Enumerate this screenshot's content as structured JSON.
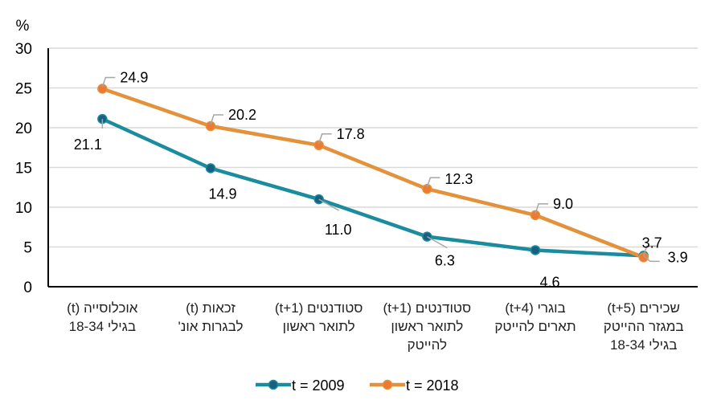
{
  "chart_data": {
    "type": "line",
    "title": "",
    "ylabel": "%",
    "xlabel": "",
    "ylim": [
      0,
      30
    ],
    "yticks": [
      0,
      5,
      10,
      15,
      20,
      25,
      30
    ],
    "grid": true,
    "legend_position": "bottom",
    "categories": [
      [
        "אוכלוסייה (t)",
        "בגילי 18-34"
      ],
      [
        "זכאות (t)",
        "לבגרות אונ'"
      ],
      [
        "סטודנטים (t+1)",
        "לתואר ראשון"
      ],
      [
        "סטודנטים (t+1)",
        "לתואר ראשון",
        "להייטק"
      ],
      [
        "בוגרי (t+4)",
        "תארים להייטק"
      ],
      [
        "שכירים (t+5)",
        "במגזר ההייטק",
        "בגילי 18-34"
      ]
    ],
    "series": [
      {
        "name": "t = 2009",
        "color": "#1a8c9e",
        "marker_color": "#1b5f80",
        "values": [
          21.1,
          14.9,
          11.0,
          6.3,
          4.6,
          3.9
        ],
        "labels": [
          "21.1",
          "14.9",
          "11.0",
          "6.3",
          "4.6",
          "3.9"
        ]
      },
      {
        "name": "t = 2018",
        "color": "#e3913a",
        "marker_color": "#ec7a35",
        "values": [
          24.9,
          20.2,
          17.8,
          12.3,
          9.0,
          3.7
        ],
        "labels": [
          "24.9",
          "20.2",
          "17.8",
          "12.3",
          "9.0",
          "3.7"
        ]
      }
    ]
  }
}
